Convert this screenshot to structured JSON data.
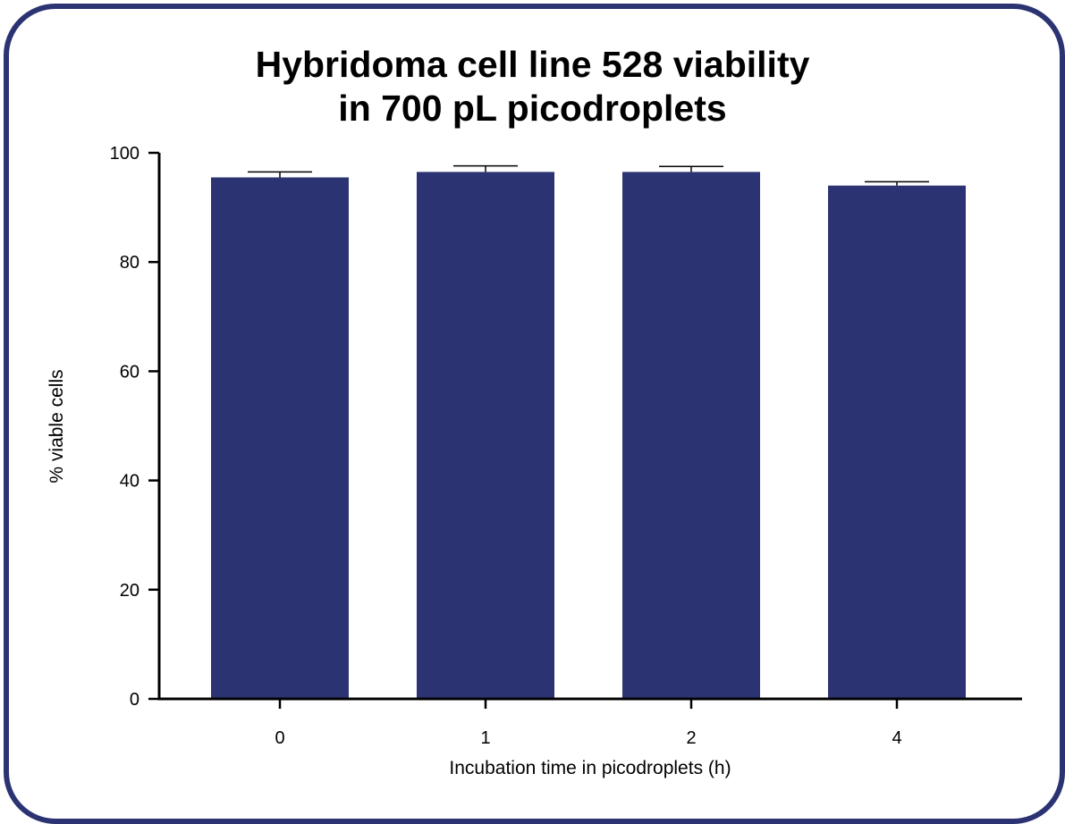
{
  "chart_data": {
    "type": "bar",
    "title_lines": [
      "Hybridoma cell line 528 viability",
      "in 700 pL picodroplets"
    ],
    "xlabel": "Incubation time in picodroplets (h)",
    "ylabel": "% viable cells",
    "categories": [
      "0",
      "1",
      "2",
      "4"
    ],
    "values": [
      95.5,
      96.5,
      96.5,
      94.0
    ],
    "error_upper": [
      1.0,
      1.1,
      1.0,
      0.7
    ],
    "ylim": [
      0,
      100
    ],
    "yticks": [
      "0",
      "20",
      "40",
      "60",
      "80",
      "100"
    ],
    "grid": false,
    "bar_color": "#2b3372",
    "frame_color": "#2b3372"
  }
}
